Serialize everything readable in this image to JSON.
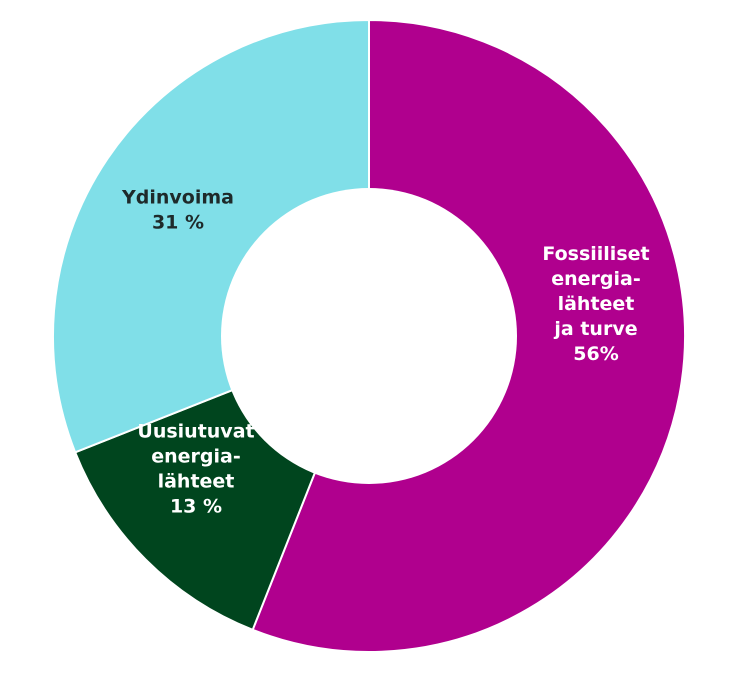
{
  "chart_data": {
    "type": "pie",
    "variant": "donut",
    "start_angle_deg": 0,
    "direction": "clockwise",
    "slices": [
      {
        "label_lines": [
          "Fossiiliset",
          "energia-",
          "lähteet",
          "ja turve",
          "56%"
        ],
        "value": 56,
        "color": "#b0008e",
        "label_color": "#ffffff"
      },
      {
        "label_lines": [
          "Uusiutuvat",
          "energia-",
          "lähteet",
          "13 %"
        ],
        "value": 13,
        "color": "#00451e",
        "label_color": "#ffffff"
      },
      {
        "label_lines": [
          "Ydinvoima",
          "31 %"
        ],
        "value": 31,
        "color": "#80dfe8",
        "label_color": "#1e2a2a"
      }
    ],
    "separator_color": "#ffffff",
    "hole_color": "#ffffff"
  }
}
